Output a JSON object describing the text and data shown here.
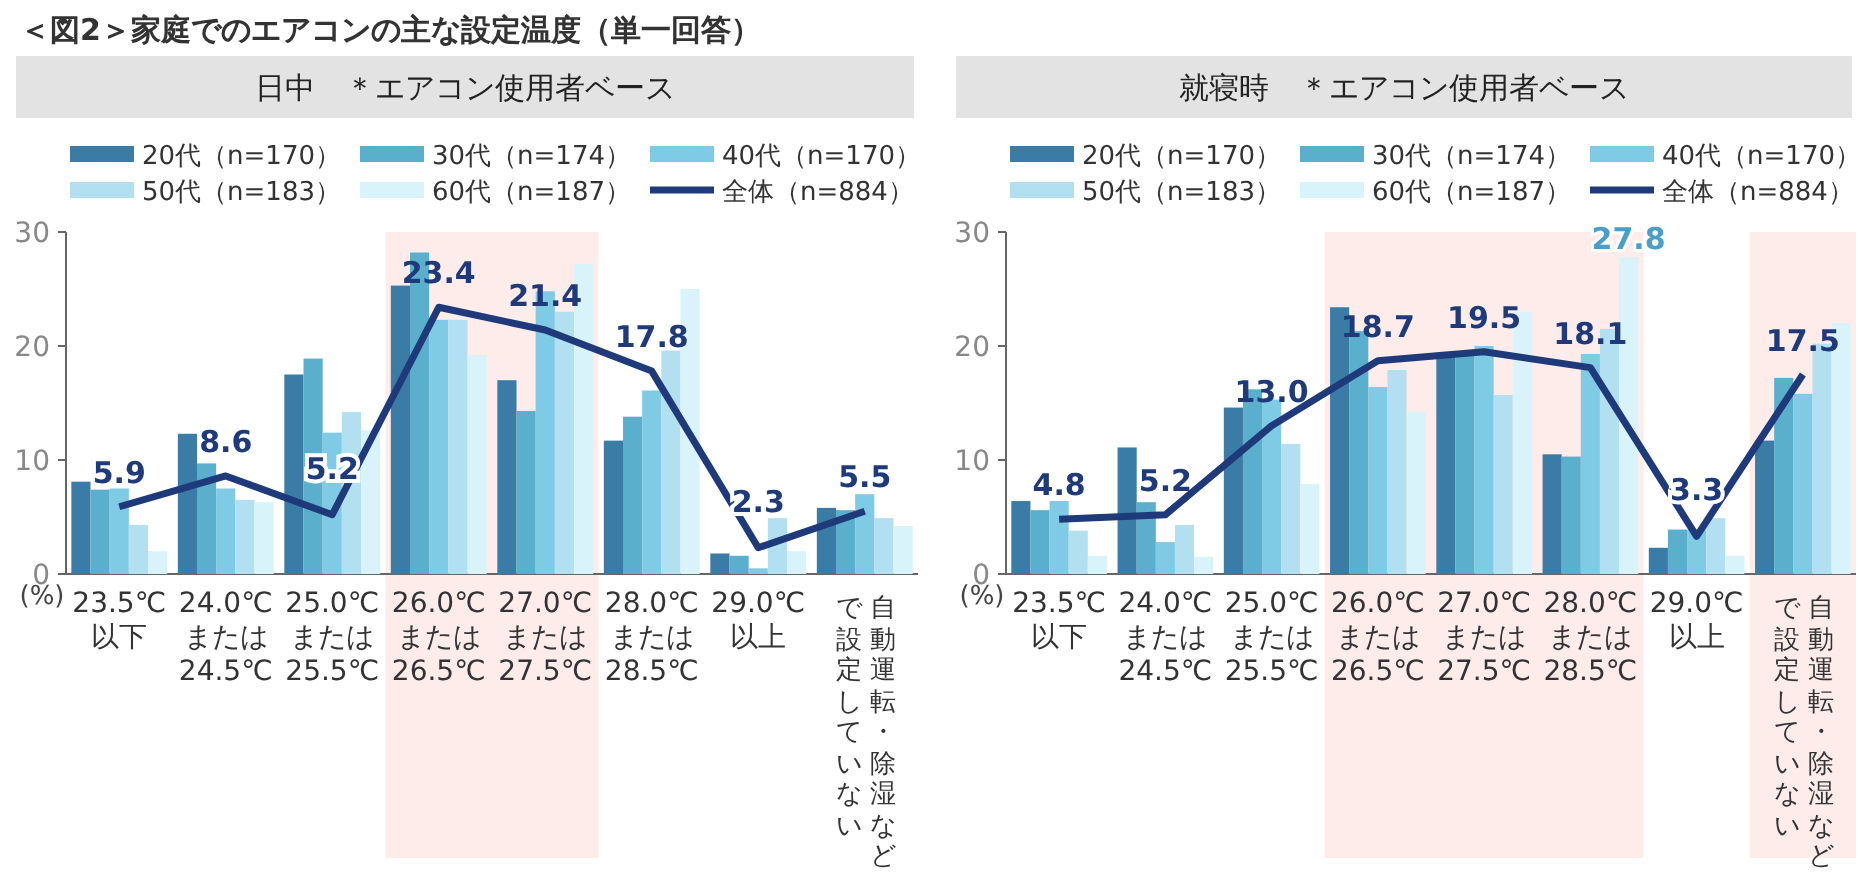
{
  "chart_data": [
    {
      "type": "bar",
      "title": "日中　＊エアコン使用者ベース",
      "ylabel": "(%)",
      "annotations": [
        "＜図2＞家庭でのエアコンの主な設定温度（単一回答）"
      ],
      "categories": [
        "23.5℃\n以下",
        "24.0℃\nまたは\n24.5℃",
        "25.0℃\nまたは\n25.5℃",
        "26.0℃\nまたは\n26.5℃",
        "27.0℃\nまたは\n27.5℃",
        "28.0℃\nまたは\n28.5℃",
        "29.0℃\n以上",
        "自動運転・除湿などで設定していない"
      ],
      "series": [
        {
          "name": "20代（n=170）",
          "color": "#3a7ca5",
          "values": [
            8.1,
            12.3,
            17.5,
            25.3,
            17.0,
            11.7,
            1.8,
            5.8
          ]
        },
        {
          "name": "30代（n=174）",
          "color": "#5aafcc",
          "values": [
            7.4,
            9.7,
            18.9,
            28.2,
            14.3,
            13.8,
            1.6,
            5.6
          ]
        },
        {
          "name": "40代（n=170）",
          "color": "#7fcbe6",
          "values": [
            7.5,
            7.5,
            12.4,
            22.3,
            24.8,
            16.1,
            0.5,
            7.0
          ]
        },
        {
          "name": "50代（n=183）",
          "color": "#b3e0f0",
          "values": [
            4.3,
            6.5,
            14.2,
            22.3,
            23.0,
            19.6,
            4.9,
            4.9
          ]
        },
        {
          "name": "60代（n=187）",
          "color": "#d9f3fa",
          "values": [
            2.0,
            6.3,
            12.6,
            19.2,
            27.2,
            25.0,
            2.0,
            4.2
          ]
        },
        {
          "name": "全体（n=884）",
          "type": "line",
          "color": "#1f3a7a",
          "values": [
            5.9,
            8.6,
            5.2,
            23.4,
            21.4,
            17.8,
            2.3,
            5.5
          ],
          "value_labels": [
            "5.9",
            "8.6",
            "5.2",
            "23.4",
            "21.4",
            "17.8",
            "2.3",
            "5.5"
          ]
        }
      ],
      "bands": [
        {
          "axis": "x",
          "from": "26.0℃\nまたは\n26.5℃",
          "to": "27.0℃\nまたは\n27.5℃",
          "color": "#fdecea"
        }
      ],
      "ylim": [
        0,
        30
      ],
      "yticks": [
        0,
        10,
        20,
        30
      ],
      "legend": "top",
      "grid": false,
      "marker": "none",
      "line_style": "solid"
    },
    {
      "type": "bar",
      "title": "就寝時　＊エアコン使用者ベース",
      "ylabel": "(%)",
      "categories": [
        "23.5℃\n以下",
        "24.0℃\nまたは\n24.5℃",
        "25.0℃\nまたは\n25.5℃",
        "26.0℃\nまたは\n26.5℃",
        "27.0℃\nまたは\n27.5℃",
        "28.0℃\nまたは\n28.5℃",
        "29.0℃\n以上",
        "自動運転・除湿などで設定していない"
      ],
      "series": [
        {
          "name": "20代（n=170）",
          "color": "#3a7ca5",
          "values": [
            6.4,
            11.1,
            14.6,
            23.4,
            19.4,
            10.5,
            2.3,
            11.7
          ]
        },
        {
          "name": "30代（n=174）",
          "color": "#5aafcc",
          "values": [
            5.6,
            6.3,
            16.2,
            21.3,
            19.4,
            10.3,
            3.9,
            17.2
          ]
        },
        {
          "name": "40代（n=170）",
          "color": "#7fcbe6",
          "values": [
            6.4,
            2.8,
            15.3,
            16.4,
            20.0,
            19.3,
            3.9,
            15.8
          ]
        },
        {
          "name": "50代（n=183）",
          "color": "#b3e0f0",
          "values": [
            3.8,
            4.3,
            11.4,
            17.9,
            15.7,
            21.5,
            4.9,
            20.2
          ]
        },
        {
          "name": "60代（n=187）",
          "color": "#d9f3fa",
          "values": [
            1.6,
            1.5,
            7.9,
            14.2,
            23.0,
            27.8,
            1.6,
            22.0
          ],
          "value_labels": [
            null,
            null,
            null,
            null,
            null,
            "27.8",
            null,
            null
          ]
        },
        {
          "name": "全体（n=884）",
          "type": "line",
          "color": "#1f3a7a",
          "values": [
            4.8,
            5.2,
            13.0,
            18.7,
            19.5,
            18.1,
            3.3,
            17.5
          ],
          "value_labels": [
            "4.8",
            "5.2",
            "13.0",
            "18.7",
            "19.5",
            "18.1",
            "3.3",
            "17.5"
          ]
        }
      ],
      "bands": [
        {
          "axis": "x",
          "from": "26.0℃\nまたは\n26.5℃",
          "to": "28.0℃\nまたは\n28.5℃",
          "color": "#fdecea"
        },
        {
          "axis": "x",
          "from": "自動運転・除湿などで設定していない",
          "to": "自動運転・除湿などで設定していない",
          "color": "#fdecea"
        }
      ],
      "ylim": [
        0,
        30
      ],
      "yticks": [
        0,
        10,
        20,
        30
      ],
      "legend": "top",
      "grid": false,
      "marker": "none",
      "line_style": "solid"
    }
  ]
}
